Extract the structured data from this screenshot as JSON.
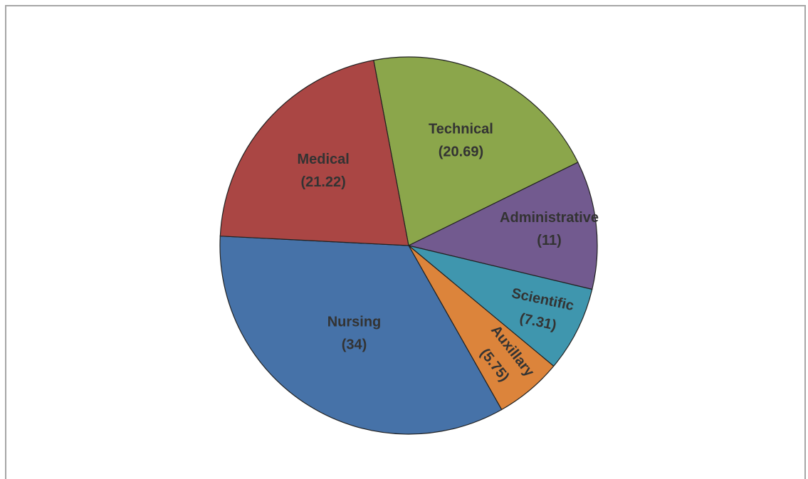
{
  "chart_data": {
    "type": "pie",
    "categories": [
      "Technical",
      "Administrative",
      "Scientific",
      "Auxillary",
      "Nursing",
      "Medical"
    ],
    "values": [
      20.69,
      11,
      7.31,
      5.75,
      34,
      21.22
    ],
    "value_labels": [
      "(20.69)",
      "(11)",
      "(7.31)",
      "(5.75)",
      "(34)",
      "(21.22)"
    ],
    "colors": [
      "#8ba64b",
      "#725a8f",
      "#3f96ae",
      "#dc843b",
      "#4672a8",
      "#aa4644"
    ]
  }
}
